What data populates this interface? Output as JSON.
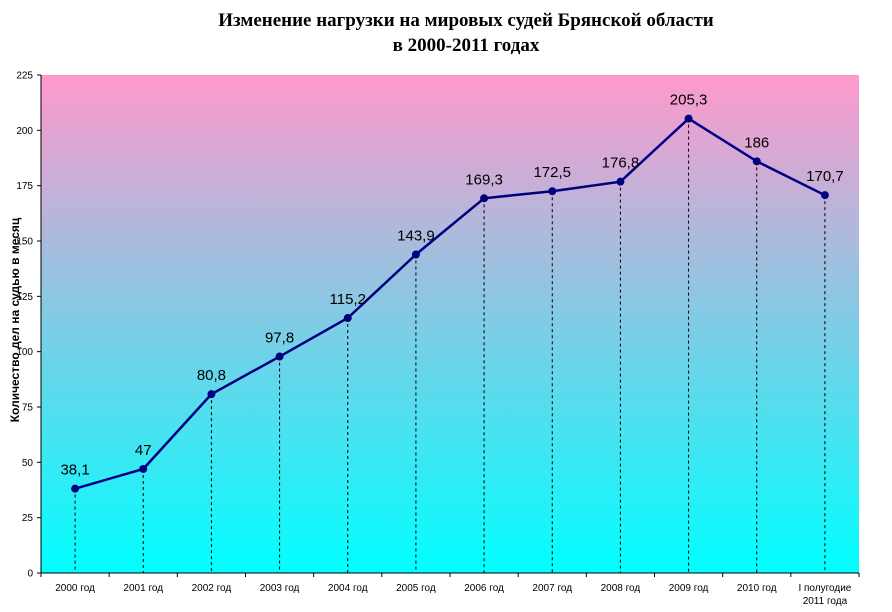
{
  "chart_data": {
    "type": "line",
    "title": [
      "Изменение нагрузки на мировых судей Брянской области",
      "в 2000-2011 годах"
    ],
    "xlabel": "",
    "ylabel": "Количество дел на судью в месяц",
    "ylim": [
      0,
      225
    ],
    "yticks": [
      0,
      25,
      50,
      75,
      100,
      125,
      150,
      175,
      200,
      225
    ],
    "categories": [
      "2000 год",
      "2001 год",
      "2002 год",
      "2003 год",
      "2004 год",
      "2005 год",
      "2006 год",
      "2007 год",
      "2008 год",
      "2009 год",
      "2010 год",
      "I полугодие 2011 года"
    ],
    "series": [
      {
        "values": [
          38.1,
          47,
          80.8,
          97.8,
          115.2,
          143.9,
          169.3,
          172.5,
          176.8,
          205.3,
          186,
          170.7
        ],
        "labels": [
          "38,1",
          "47",
          "80,8",
          "97,8",
          "115,2",
          "143,9",
          "169,3",
          "172,5",
          "176,8",
          "205,3",
          "186",
          "170,7"
        ]
      }
    ],
    "legend": "none",
    "grid": false,
    "colors": {
      "line": "#000080",
      "bg_top": "#ff99cc",
      "bg_bottom": "#00ffff"
    }
  }
}
